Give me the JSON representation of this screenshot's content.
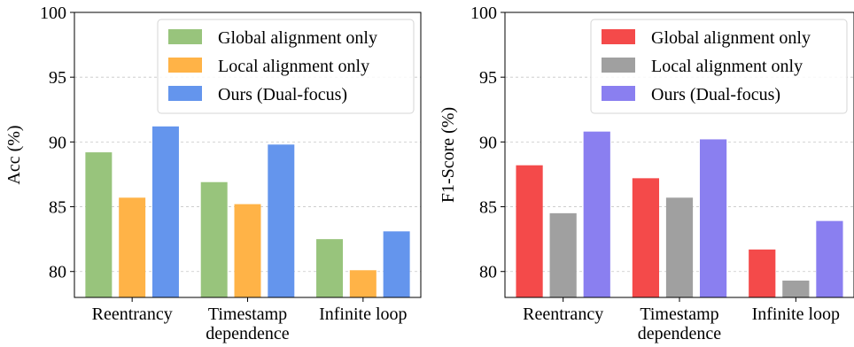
{
  "chart_data": [
    {
      "type": "bar",
      "categories": [
        [
          "Reentrancy"
        ],
        [
          "Timestamp",
          "dependence"
        ],
        [
          "Infinite loop"
        ]
      ],
      "ylabel": "Acc (%)",
      "xlabel": "",
      "ylim": [
        78,
        100
      ],
      "yticks": [
        80,
        85,
        90,
        95,
        100
      ],
      "grid": "horizontal dashed",
      "legend_position": "top-right",
      "series": [
        {
          "name": "Global alignment only",
          "color": "#98c47c",
          "values": [
            89.2,
            86.9,
            82.5
          ]
        },
        {
          "name": "Local alignment only",
          "color": "#ffb347",
          "values": [
            85.7,
            85.2,
            80.1
          ]
        },
        {
          "name": "Ours (Dual-focus)",
          "color": "#6495ed",
          "values": [
            91.2,
            89.8,
            83.1
          ]
        }
      ]
    },
    {
      "type": "bar",
      "categories": [
        [
          "Reentrancy"
        ],
        [
          "Timestamp",
          "dependence"
        ],
        [
          "Infinite loop"
        ]
      ],
      "ylabel": "F1-Score (%)",
      "xlabel": "",
      "ylim": [
        78,
        100
      ],
      "yticks": [
        80,
        85,
        90,
        95,
        100
      ],
      "grid": "horizontal dashed",
      "legend_position": "top-right",
      "series": [
        {
          "name": "Global alignment only",
          "color": "#f44a4a",
          "values": [
            88.2,
            87.2,
            81.7
          ]
        },
        {
          "name": "Local alignment only",
          "color": "#a0a0a0",
          "values": [
            84.5,
            85.7,
            79.3
          ]
        },
        {
          "name": "Ours (Dual-focus)",
          "color": "#8a7ff0",
          "values": [
            90.8,
            90.2,
            83.9
          ]
        }
      ]
    }
  ]
}
